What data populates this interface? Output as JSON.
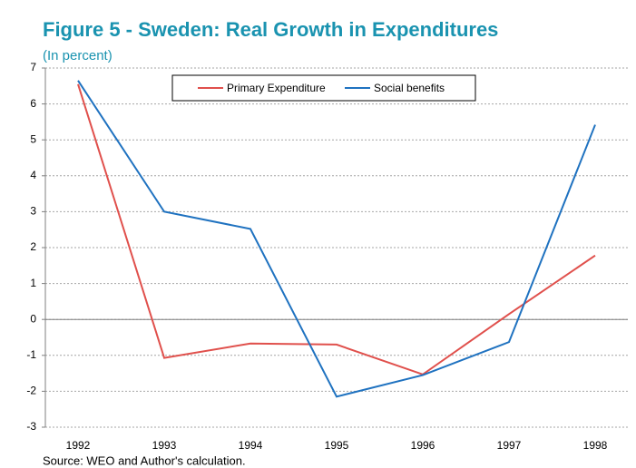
{
  "chart_data": {
    "type": "line",
    "title": "Figure 5 - Sweden: Real Growth in Expenditures",
    "subtitle": "(In percent)",
    "source": "Source: WEO and Author's calculation.",
    "categories": [
      "1992",
      "1993",
      "1994",
      "1995",
      "1996",
      "1997",
      "1998"
    ],
    "series": [
      {
        "name": "Primary Expenditure",
        "color": "#e0504c",
        "values": [
          6.55,
          -1.07,
          -0.67,
          -0.7,
          -1.53,
          0.15,
          1.78
        ]
      },
      {
        "name": "Social benefits",
        "color": "#1f72c0",
        "values": [
          6.65,
          3.0,
          2.52,
          -2.15,
          -1.55,
          -0.63,
          5.42
        ]
      }
    ],
    "ylim": [
      -3,
      7
    ],
    "yticks": [
      -3,
      -2,
      -1,
      0,
      1,
      2,
      3,
      4,
      5,
      6,
      7
    ],
    "grid": true,
    "legend": "top"
  }
}
